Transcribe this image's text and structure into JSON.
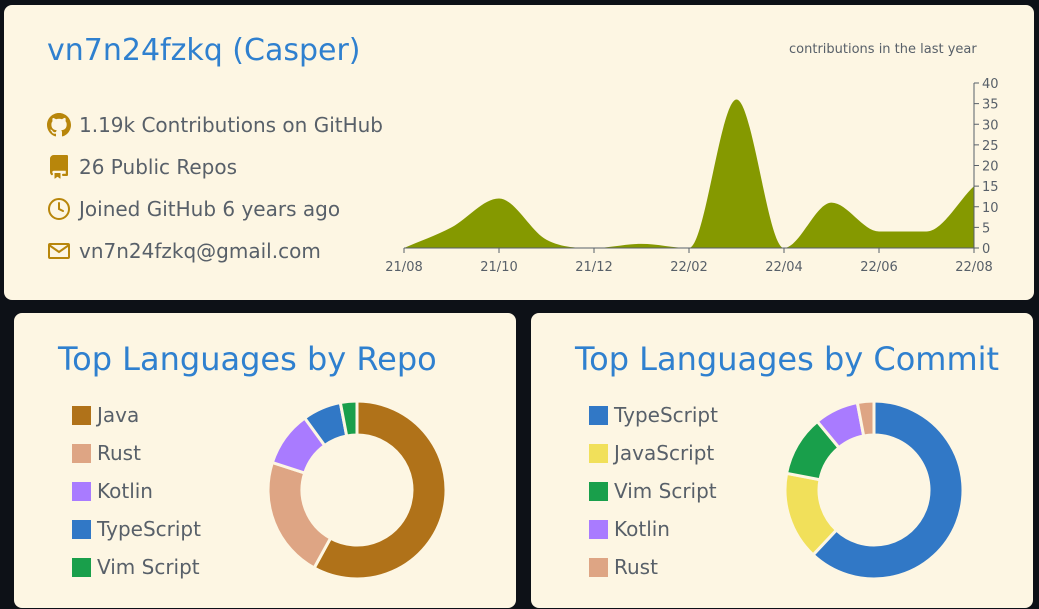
{
  "profile": {
    "title": "vn7n24fzkq (Casper)",
    "stats": [
      {
        "icon": "github-icon",
        "text": "1.19k Contributions on GitHub"
      },
      {
        "icon": "repo-icon",
        "text": "26 Public Repos"
      },
      {
        "icon": "clock-icon",
        "text": "Joined GitHub 6 years ago"
      },
      {
        "icon": "mail-icon",
        "text": "vn7n24fzkq@gmail.com"
      }
    ],
    "icon_color": "#b8860b"
  },
  "contributions": {
    "label": "contributions in the last year",
    "color": "#859900"
  },
  "repo_languages": {
    "title": "Top Languages by Repo"
  },
  "commit_languages": {
    "title": "Top Languages by Commit"
  },
  "chart_data": [
    {
      "type": "area",
      "title": "contributions in the last year",
      "x": [
        "21/08",
        "21/09",
        "21/10",
        "21/11",
        "21/12",
        "22/01",
        "22/02",
        "22/03",
        "22/04",
        "22/05",
        "22/06",
        "22/07",
        "22/08"
      ],
      "values": [
        0,
        5,
        12,
        2,
        0,
        1,
        0,
        36,
        0,
        11,
        4,
        4,
        15
      ],
      "x_tick_labels": [
        "21/08",
        "21/10",
        "21/12",
        "22/02",
        "22/04",
        "22/06",
        "22/08"
      ],
      "y_ticks": [
        0,
        5,
        10,
        15,
        20,
        25,
        30,
        35,
        40
      ],
      "ylim": [
        0,
        40
      ],
      "grid": false,
      "color": "#859900"
    },
    {
      "type": "pie",
      "title": "Top Languages by Repo",
      "categories": [
        "Java",
        "Rust",
        "Kotlin",
        "TypeScript",
        "Vim Script"
      ],
      "values": [
        58,
        22,
        10,
        7,
        3
      ],
      "colors": [
        "#b07219",
        "#dea584",
        "#a97bff",
        "#3178c6",
        "#199f4b"
      ],
      "legend": "left"
    },
    {
      "type": "pie",
      "title": "Top Languages by Commit",
      "categories": [
        "TypeScript",
        "JavaScript",
        "Vim Script",
        "Kotlin",
        "Rust"
      ],
      "values": [
        62,
        16,
        11,
        8,
        3
      ],
      "colors": [
        "#3178c6",
        "#f1e05a",
        "#199f4b",
        "#a97bff",
        "#dea584"
      ],
      "legend": "left"
    }
  ]
}
